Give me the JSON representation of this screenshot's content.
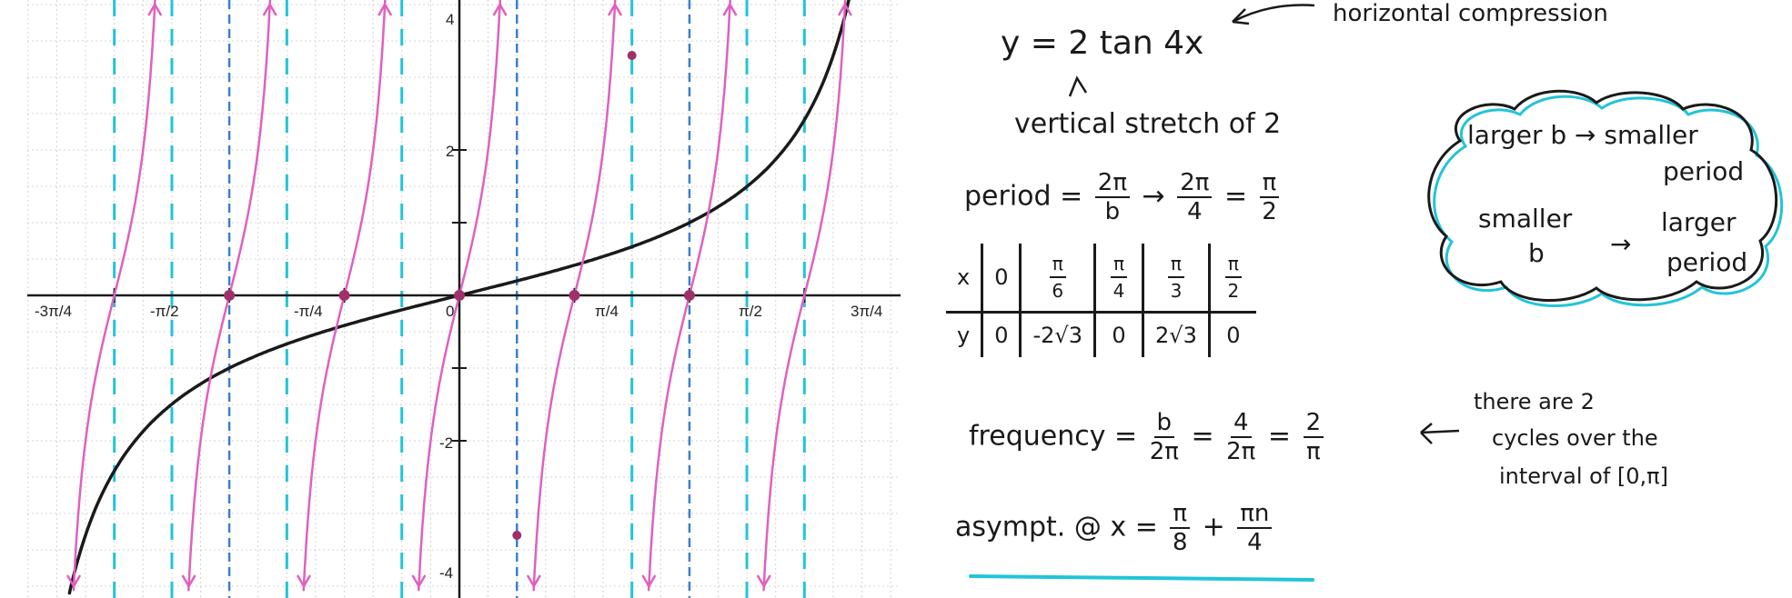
{
  "graph": {
    "x_tick_labels": [
      "-3π/4",
      "-π/2",
      "-π/4",
      "0",
      "π/4",
      "π/2",
      "3π/4"
    ],
    "y_tick_labels": [
      "4",
      "2",
      "-2",
      "-4"
    ],
    "colors": {
      "black_curve": "#1a1a1a",
      "pink_curve": "#e060c0",
      "blue_asymptote": "#3a7fd0",
      "cyan_asymptote": "#22c4d8",
      "grid": "#d4d4d4",
      "point": "#a0306a"
    }
  },
  "chart_data": {
    "type": "line",
    "xlim": [
      -2.45,
      2.45
    ],
    "ylim": [
      -4.1,
      4.1
    ],
    "grid": true,
    "series": [
      {
        "function": "y = tan(x/2)",
        "points": [
          {
            "x": -2.356,
            "y": -2.414
          },
          {
            "x": -1.571,
            "y": -1
          },
          {
            "x": -0.785,
            "y": -0.414
          },
          {
            "x": 0,
            "y": 0
          },
          {
            "x": 0.785,
            "y": 0.414
          },
          {
            "x": 1.571,
            "y": 1
          },
          {
            "x": 2.356,
            "y": 2.414
          }
        ]
      },
      {
        "function": "y = 2 tan(4x)",
        "points": [
          {
            "x": -1.571,
            "y": 0
          },
          {
            "x": -0.785,
            "y": 0
          },
          {
            "x": 0,
            "y": 0
          },
          {
            "x": 0.785,
            "y": 0
          },
          {
            "x": 1.571,
            "y": 0
          }
        ]
      }
    ],
    "asymptotes_dashed_blue": [
      -1.571,
      0.393,
      1.571
    ],
    "asymptotes_dashed_cyan": [
      -2.356,
      -1.963,
      -1.178,
      -0.393,
      1.178,
      1.963,
      2.356
    ],
    "marked_points": [
      {
        "x": 0.393,
        "y": -3.3
      },
      {
        "x": 1.178,
        "y": 3.3
      }
    ]
  },
  "notes": {
    "equation": "y = 2 tan 4x",
    "horizontal_note": "horizontal compression",
    "vertical_note": "vertical stretch of 2",
    "period_label": "period =",
    "period_num1": "2π",
    "period_den1": "b",
    "period_arrow": "→",
    "period_num2": "2π",
    "period_den2": "4",
    "period_eq": "=",
    "period_num3": "π",
    "period_den3": "2",
    "table_x_label": "x",
    "table_y_label": "y",
    "table_x0": "0",
    "table_x1_num": "π",
    "table_x1_den": "6",
    "table_x2_num": "π",
    "table_x2_den": "4",
    "table_x3_num": "π",
    "table_x3_den": "3",
    "table_x4_num": "π",
    "table_x4_den": "2",
    "table_y0": "0",
    "table_y1": "-2√3",
    "table_y2": "0",
    "table_y3": "2√3",
    "table_y4": "0",
    "frequency_label": "frequency =",
    "freq_num1": "b",
    "freq_den1": "2π",
    "freq_eq1": "=",
    "freq_num2": "4",
    "freq_den2": "2π",
    "freq_eq2": "=",
    "freq_num3": "2",
    "freq_den3": "π",
    "cycles_line1": "there are 2",
    "cycles_line2": "cycles over the",
    "cycles_line3": "interval of [0,π]",
    "asymptote_label": "asympt. @ x =",
    "asym_num1": "π",
    "asym_den1": "8",
    "asym_plus": "+",
    "asym_num2": "πn",
    "asym_den2": "4",
    "cloud_line1": "larger b → smaller",
    "cloud_line2": "period",
    "cloud_line3": "smaller",
    "cloud_line4": "b",
    "cloud_arrow": "→",
    "cloud_line5": "larger",
    "cloud_line6": "period"
  }
}
